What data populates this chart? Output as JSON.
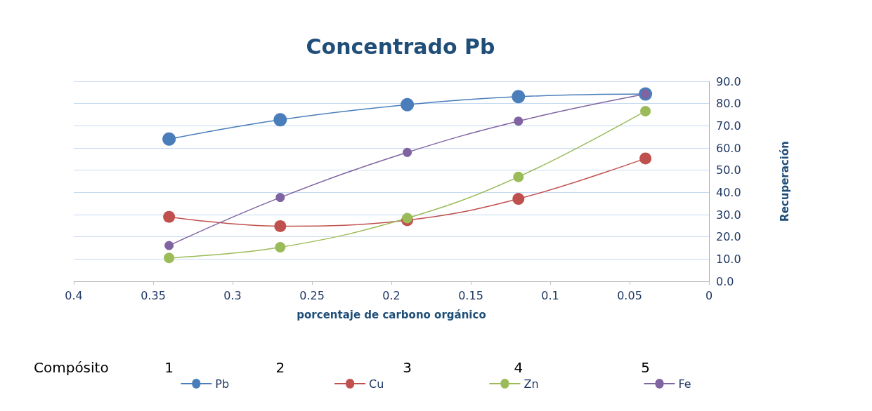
{
  "chart_data": {
    "type": "line",
    "title": "Concentrado Pb",
    "xlabel": "porcentaje de carbono orgánico",
    "ylabel": "Recuperación",
    "x": [
      0.34,
      0.27,
      0.19,
      0.12,
      0.04
    ],
    "series": [
      {
        "name": "Pb",
        "color": "#4a7ebb",
        "values": [
          64.0,
          72.7,
          79.5,
          83.1,
          84.3
        ]
      },
      {
        "name": "Cu",
        "color": "#c0504d",
        "values": [
          29.0,
          24.8,
          27.5,
          37.1,
          55.3
        ]
      },
      {
        "name": "Zn",
        "color": "#9bbb59",
        "values": [
          10.5,
          15.3,
          28.4,
          47.0,
          76.6
        ]
      },
      {
        "name": "Fe",
        "color": "#8064a2",
        "values": [
          16.1,
          37.7,
          58.0,
          72.1,
          84.3
        ]
      }
    ],
    "xlim": [
      0.4,
      0
    ],
    "xticks": [
      0.4,
      0.35,
      0.3,
      0.25,
      0.2,
      0.15,
      0.1,
      0.05,
      0
    ],
    "ylim": [
      0,
      90
    ],
    "yticks": [
      {
        "value": 0,
        "label": "0.0"
      },
      {
        "value": 10,
        "label": "10.0"
      },
      {
        "value": 20,
        "label": "20.0"
      },
      {
        "value": 30,
        "label": "30.0"
      },
      {
        "value": 40,
        "label": "40.0"
      },
      {
        "value": 50,
        "label": "50.0"
      },
      {
        "value": 60,
        "label": "60.0"
      },
      {
        "value": 70,
        "label": "70.0"
      },
      {
        "value": 80,
        "label": "80.0"
      },
      {
        "value": 90,
        "label": "90.0"
      }
    ],
    "grid": "y",
    "legend": "bottom",
    "marker": "circle",
    "line_style": "solid",
    "annotations": [
      "Compósito",
      "1",
      "2",
      "3",
      "4",
      "5"
    ]
  }
}
